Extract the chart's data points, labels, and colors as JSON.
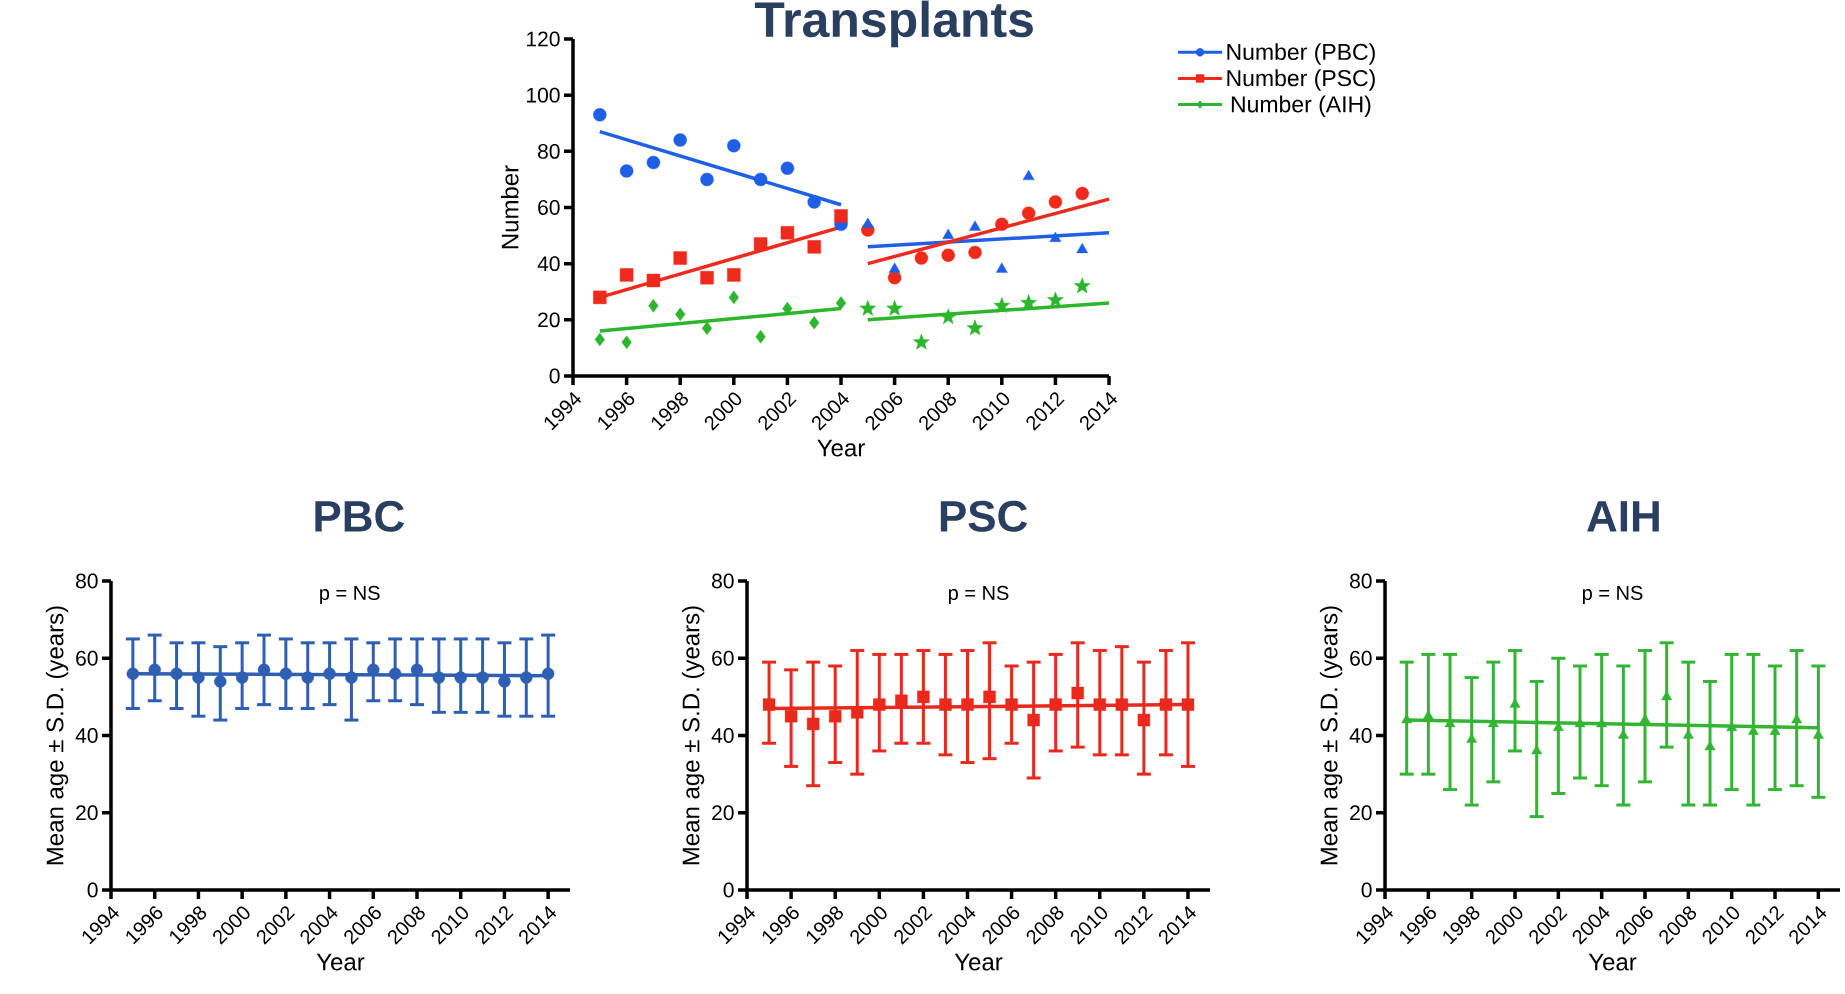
{
  "chart_data": [
    {
      "type": "scatter",
      "title": "Transplants",
      "xlabel": "Year",
      "ylabel": "Number",
      "xlim": [
        1994,
        2014
      ],
      "xticks": [
        1994,
        1996,
        1998,
        2000,
        2002,
        2004,
        2006,
        2008,
        2010,
        2012,
        2014
      ],
      "ylim": [
        0,
        120
      ],
      "yticks": [
        0,
        20,
        40,
        60,
        80,
        100,
        120
      ],
      "legend": "top right",
      "series": [
        {
          "name": "Number (PBC)",
          "color": "#1f5fe6",
          "marker": "circle",
          "x": [
            1995,
            1996,
            1997,
            1998,
            1999,
            2000,
            2001,
            2002,
            2003,
            2004
          ],
          "values": [
            93,
            73,
            76,
            84,
            70,
            82,
            70,
            74,
            62,
            54
          ]
        },
        {
          "name": "Number (PSC)",
          "color": "#ee2a1c",
          "marker": "square",
          "x": [
            1995,
            1996,
            1997,
            1998,
            1999,
            2000,
            2001,
            2002,
            2003,
            2004
          ],
          "values": [
            28,
            36,
            34,
            42,
            35,
            36,
            47,
            51,
            46,
            57
          ]
        },
        {
          "color": "#ee2a1c",
          "marker": "circle",
          "x": [
            2005,
            2006,
            2007,
            2008,
            2009,
            2010,
            2011,
            2012,
            2013
          ],
          "values": [
            52,
            35,
            42,
            43,
            44,
            54,
            58,
            62,
            65
          ]
        },
        {
          "color": "#1f5fe6",
          "marker": "triangle",
          "x": [
            2005,
            2006,
            2007,
            2008,
            2009,
            2010,
            2011,
            2012,
            2013
          ],
          "values": [
            54,
            38,
            null,
            50,
            53,
            38,
            71,
            49,
            45
          ]
        },
        {
          "name": "Number (AIH)",
          "color": "#2db52d",
          "marker": "diamond",
          "x": [
            1995,
            1996,
            1997,
            1998,
            1999,
            2000,
            2001,
            2002,
            2003,
            2004
          ],
          "values": [
            13,
            12,
            25,
            22,
            17,
            28,
            14,
            24,
            19,
            26
          ]
        },
        {
          "color": "#2db52d",
          "marker": "star",
          "x": [
            2005,
            2006,
            2007,
            2008,
            2009,
            2010,
            2011,
            2012,
            2013
          ],
          "values": [
            24,
            24,
            12,
            21,
            17,
            25,
            26,
            27,
            32
          ]
        },
        {
          "type": "line",
          "color": "#1f5fe6",
          "marker": "none",
          "x": [
            1995,
            2004
          ],
          "values": [
            87,
            61
          ]
        },
        {
          "type": "line",
          "color": "#1f5fe6",
          "marker": "none",
          "x": [
            2005,
            2014
          ],
          "values": [
            46,
            51
          ]
        },
        {
          "type": "line",
          "color": "#ee2a1c",
          "marker": "none",
          "x": [
            1995,
            2004
          ],
          "values": [
            28,
            53
          ]
        },
        {
          "type": "line",
          "color": "#ee2a1c",
          "marker": "none",
          "x": [
            2005,
            2014
          ],
          "values": [
            40,
            63
          ]
        },
        {
          "type": "line",
          "color": "#2db52d",
          "marker": "none",
          "x": [
            1995,
            2004
          ],
          "values": [
            16,
            24
          ]
        },
        {
          "type": "line",
          "color": "#2db52d",
          "marker": "none",
          "x": [
            2005,
            2014
          ],
          "values": [
            20,
            26
          ]
        }
      ]
    },
    {
      "type": "scatter",
      "title": "PBC",
      "xlabel": "Year",
      "ylabel": "Mean age ± S.D. (years)",
      "annotations": [
        "p = NS"
      ],
      "x": [
        1995,
        1996,
        1997,
        1998,
        1999,
        2000,
        2001,
        2002,
        2003,
        2004,
        2005,
        2006,
        2007,
        2008,
        2009,
        2010,
        2011,
        2012,
        2013,
        2014
      ],
      "xlim": [
        1994,
        2015
      ],
      "xticks": [
        1994,
        1996,
        1998,
        2000,
        2002,
        2004,
        2006,
        2008,
        2010,
        2012,
        2014
      ],
      "ylim": [
        0,
        80
      ],
      "yticks": [
        0,
        20,
        40,
        60,
        80
      ],
      "series": [
        {
          "color": "#2f5fb3",
          "marker": "circle",
          "values": [
            56,
            57,
            56,
            55,
            54,
            55,
            57,
            56,
            55,
            56,
            55,
            57,
            56,
            57,
            55,
            55,
            55,
            54,
            55,
            56
          ],
          "errors": [
            [
              47,
              65
            ],
            [
              49,
              66
            ],
            [
              47,
              64
            ],
            [
              45,
              64
            ],
            [
              44,
              63
            ],
            [
              47,
              64
            ],
            [
              48,
              66
            ],
            [
              47,
              65
            ],
            [
              47,
              64
            ],
            [
              48,
              64
            ],
            [
              44,
              65
            ],
            [
              49,
              64
            ],
            [
              49,
              65
            ],
            [
              48,
              65
            ],
            [
              46,
              65
            ],
            [
              46,
              65
            ],
            [
              46,
              65
            ],
            [
              45,
              64
            ],
            [
              45,
              65
            ],
            [
              45,
              66
            ]
          ]
        },
        {
          "type": "line",
          "color": "#2f5fb3",
          "marker": "none",
          "x": [
            1995,
            2014
          ],
          "values": [
            56,
            55.5
          ]
        }
      ]
    },
    {
      "type": "scatter",
      "title": "PSC",
      "xlabel": "Year",
      "ylabel": "Mean age ± S.D. (years)",
      "annotations": [
        "p = NS"
      ],
      "x": [
        1995,
        1996,
        1997,
        1998,
        1999,
        2000,
        2001,
        2002,
        2003,
        2004,
        2005,
        2006,
        2007,
        2008,
        2009,
        2010,
        2011,
        2012,
        2013,
        2014
      ],
      "xlim": [
        1994,
        2015
      ],
      "xticks": [
        1994,
        1996,
        1998,
        2000,
        2002,
        2004,
        2006,
        2008,
        2010,
        2012,
        2014
      ],
      "ylim": [
        0,
        80
      ],
      "yticks": [
        0,
        20,
        40,
        60,
        80
      ],
      "series": [
        {
          "color": "#e8291c",
          "marker": "square",
          "values": [
            48,
            45,
            43,
            45,
            46,
            48,
            49,
            50,
            48,
            48,
            50,
            48,
            44,
            48,
            51,
            48,
            48,
            44,
            48,
            48
          ],
          "errors": [
            [
              38,
              59
            ],
            [
              32,
              57
            ],
            [
              27,
              59
            ],
            [
              33,
              58
            ],
            [
              30,
              62
            ],
            [
              36,
              61
            ],
            [
              38,
              61
            ],
            [
              38,
              62
            ],
            [
              35,
              61
            ],
            [
              33,
              62
            ],
            [
              34,
              64
            ],
            [
              38,
              58
            ],
            [
              29,
              59
            ],
            [
              36,
              61
            ],
            [
              37,
              64
            ],
            [
              35,
              62
            ],
            [
              35,
              63
            ],
            [
              30,
              59
            ],
            [
              35,
              62
            ],
            [
              32,
              64
            ]
          ]
        },
        {
          "type": "line",
          "color": "#e8291c",
          "marker": "none",
          "x": [
            1995,
            2014
          ],
          "values": [
            47,
            48
          ]
        }
      ]
    },
    {
      "type": "scatter",
      "title": "AIH",
      "xlabel": "Year",
      "ylabel": "Mean age ± S.D. (years)",
      "annotations": [
        "p = NS"
      ],
      "x": [
        1995,
        1996,
        1997,
        1998,
        1999,
        2000,
        2001,
        2002,
        2003,
        2004,
        2005,
        2006,
        2007,
        2008,
        2009,
        2010,
        2011,
        2012,
        2013,
        2014
      ],
      "xlim": [
        1994,
        2015
      ],
      "xticks": [
        1994,
        1996,
        1998,
        2000,
        2002,
        2004,
        2006,
        2008,
        2010,
        2012,
        2014
      ],
      "ylim": [
        0,
        80
      ],
      "yticks": [
        0,
        20,
        40,
        60,
        80
      ],
      "series": [
        {
          "color": "#33b533",
          "marker": "triangle",
          "values": [
            44,
            45,
            43,
            39,
            43,
            48,
            36,
            42,
            43,
            43,
            40,
            44,
            50,
            40,
            37,
            42,
            41,
            41,
            44,
            40
          ],
          "errors": [
            [
              30,
              59
            ],
            [
              30,
              61
            ],
            [
              26,
              61
            ],
            [
              22,
              55
            ],
            [
              28,
              59
            ],
            [
              36,
              62
            ],
            [
              19,
              54
            ],
            [
              25,
              60
            ],
            [
              29,
              58
            ],
            [
              27,
              61
            ],
            [
              22,
              58
            ],
            [
              28,
              62
            ],
            [
              37,
              64
            ],
            [
              22,
              59
            ],
            [
              22,
              54
            ],
            [
              26,
              61
            ],
            [
              22,
              61
            ],
            [
              26,
              58
            ],
            [
              27,
              62
            ],
            [
              24,
              58
            ]
          ]
        },
        {
          "type": "line",
          "color": "#33b533",
          "marker": "none",
          "x": [
            1995,
            2014
          ],
          "values": [
            44,
            42
          ]
        }
      ]
    }
  ]
}
